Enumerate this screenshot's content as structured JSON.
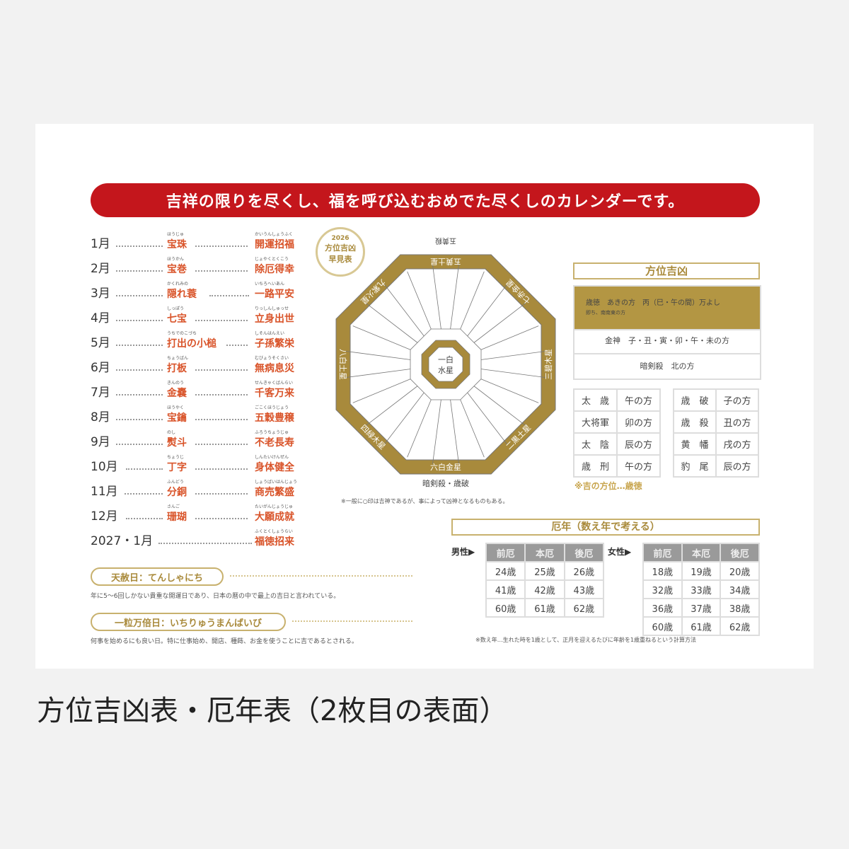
{
  "banner": "吉祥の限りを尽くし、福を呼び込むおめでた尽くしのカレンダーです。",
  "months": [
    {
      "month": "1月",
      "lucky": "宝珠",
      "lucky_ruby": "ほうじゅ",
      "wish": "開運招福",
      "wish_ruby": "かいうんしょうふく"
    },
    {
      "month": "2月",
      "lucky": "宝巻",
      "lucky_ruby": "ほうかん",
      "wish": "除厄得幸",
      "wish_ruby": "じょやくとくこう"
    },
    {
      "month": "3月",
      "lucky": "隠れ蓑",
      "lucky_ruby": "かくれみの",
      "wish": "一路平安",
      "wish_ruby": "いちろへいあん"
    },
    {
      "month": "4月",
      "lucky": "七宝",
      "lucky_ruby": "しっぽう",
      "wish": "立身出世",
      "wish_ruby": "りっしんしゅっせ"
    },
    {
      "month": "5月",
      "lucky": "打出の小槌",
      "lucky_ruby": "うちでのこづち",
      "wish": "子孫繁栄",
      "wish_ruby": "しそんはんえい"
    },
    {
      "month": "6月",
      "lucky": "打板",
      "lucky_ruby": "ちょうばん",
      "wish": "無病息災",
      "wish_ruby": "むびょうそくさい"
    },
    {
      "month": "7月",
      "lucky": "金嚢",
      "lucky_ruby": "きんのう",
      "wish": "千客万来",
      "wish_ruby": "せんきゃくばんらい"
    },
    {
      "month": "8月",
      "lucky": "宝鑰",
      "lucky_ruby": "ほうやく",
      "wish": "五穀豊穣",
      "wish_ruby": "ごこくほうじょう"
    },
    {
      "month": "9月",
      "lucky": "熨斗",
      "lucky_ruby": "のし",
      "wish": "不老長寿",
      "wish_ruby": "ふろうちょうじゅ"
    },
    {
      "month": "10月",
      "lucky": "丁字",
      "lucky_ruby": "ちょうじ",
      "wish": "身体健全",
      "wish_ruby": "しんたいけんぜん"
    },
    {
      "month": "11月",
      "lucky": "分銅",
      "lucky_ruby": "ふんどう",
      "wish": "商売繁盛",
      "wish_ruby": "しょうばいはんじょう"
    },
    {
      "month": "12月",
      "lucky": "珊瑚",
      "lucky_ruby": "さんご",
      "wish": "大願成就",
      "wish_ruby": "たいがんじょうじゅ"
    },
    {
      "month": "2027・1月",
      "lucky": "",
      "lucky_ruby": "",
      "wish": "福徳招来",
      "wish_ruby": "ふくとくしょうらい"
    }
  ],
  "badge": {
    "year": "2026",
    "line1": "方位吉凶",
    "line2": "早見表"
  },
  "octagon": {
    "center": [
      "一白",
      "水星"
    ],
    "stars": [
      "六白金星",
      "四緑木星",
      "八白土星",
      "九紫火星",
      "五黄土星",
      "七赤金星",
      "三碧木星",
      "二黒土星"
    ],
    "top_label": "五黄殺",
    "bottom_label": "暗剣殺・歳破",
    "note": "※一般に○印は吉神であるが、事によって凶神となるものもある。"
  },
  "hoi": {
    "title": "方位吉凶",
    "toku_line1": "歳徳　あきの方　丙（巳・午の間）万よし",
    "toku_line2": "即ち、南南東の方",
    "konjin": "金神　子・丑・寅・卯・午・未の方",
    "ankensatsu": "暗剣殺　北の方",
    "left_table": [
      [
        "太　歳",
        "午の方"
      ],
      [
        "大将軍",
        "卯の方"
      ],
      [
        "太　陰",
        "辰の方"
      ],
      [
        "歳　刑",
        "午の方"
      ]
    ],
    "right_table": [
      [
        "歳　破",
        "子の方"
      ],
      [
        "歳　殺",
        "丑の方"
      ],
      [
        "黄　幡",
        "戌の方"
      ],
      [
        "豹　尾",
        "辰の方"
      ]
    ],
    "lucky_note": "※吉の方位…歳徳"
  },
  "yakudoshi": {
    "title": "厄年（数え年で考える）",
    "headers": [
      "前厄",
      "本厄",
      "後厄"
    ],
    "male_label": "男性",
    "female_label": "女性",
    "male": [
      [
        "24歳",
        "25歳",
        "26歳"
      ],
      [
        "41歳",
        "42歳",
        "43歳"
      ],
      [
        "60歳",
        "61歳",
        "62歳"
      ]
    ],
    "female": [
      [
        "18歳",
        "19歳",
        "20歳"
      ],
      [
        "32歳",
        "33歳",
        "34歳"
      ],
      [
        "36歳",
        "37歳",
        "38歳"
      ],
      [
        "60歳",
        "61歳",
        "62歳"
      ]
    ],
    "note": "※数え年…生れた時を1歳として、正月を迎えるたびに年齢を1歳重ねるという計算方法"
  },
  "tensha": {
    "title": "天赦日：てんしゃにち",
    "text": "年に5〜6回しかない貴重な開運日であり、日本の暦の中で最上の吉日と言われている。"
  },
  "ichiryu": {
    "title": "一粒万倍日：いちりゅうまんばいび",
    "text": "何事を始めるにも良い日。特に仕事始め、開店、種蒔、お金を使うことに吉であるとされる。"
  },
  "caption": "方位吉凶表・厄年表（2枚目の表面）",
  "colors": {
    "red": "#c4161c",
    "gold": "#a88a3c",
    "orange": "#d9542a"
  }
}
